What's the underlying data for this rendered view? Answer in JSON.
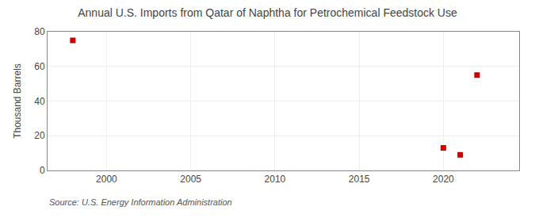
{
  "chart_data": {
    "type": "scatter",
    "title": "Annual U.S. Imports from Qatar of Naphtha for Petrochemical Feedstock Use",
    "y_label": "Thousand Barrels",
    "annotations": [
      "Source: U.S. Energy Information Administration"
    ],
    "x": [
      1998,
      2020,
      2021,
      2022
    ],
    "values": [
      75,
      13,
      9,
      55
    ],
    "color": "#cc0000",
    "marker": "square",
    "xlim": [
      1996.5,
      2024.5
    ],
    "xticks": [
      2000,
      2005,
      2010,
      2015,
      2020
    ],
    "ylim": [
      0,
      80
    ],
    "yticks": [
      0,
      20,
      40,
      60,
      80
    ],
    "grid": true
  }
}
